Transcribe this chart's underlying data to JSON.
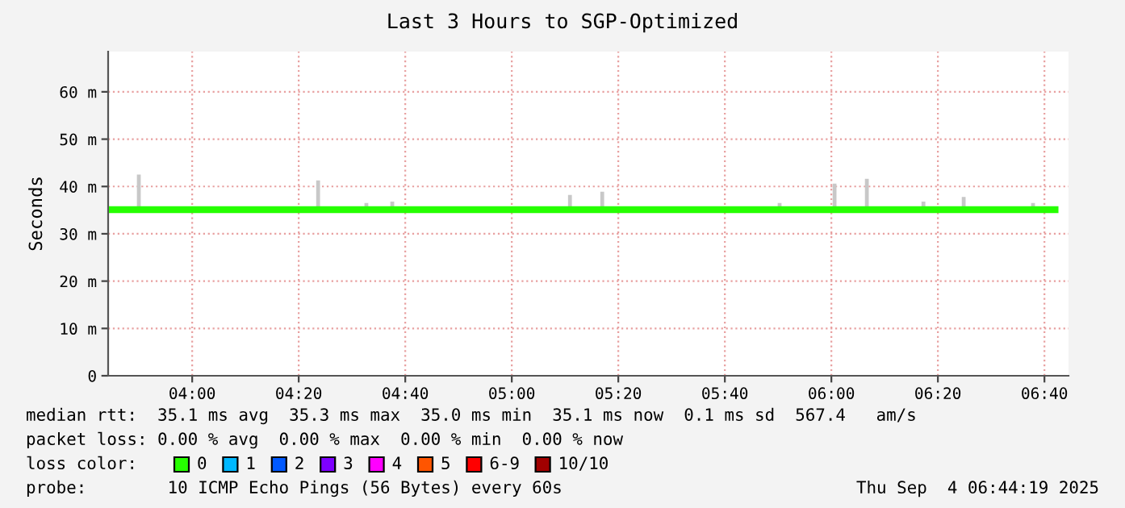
{
  "chart_data": {
    "type": "line",
    "title": "Last 3 Hours to SGP-Optimized",
    "ylabel": "Seconds",
    "x": [
      3.75,
      3.821,
      3.833,
      3.845,
      3.95,
      4.05,
      4.15,
      4.25,
      4.35,
      4.382,
      4.394,
      4.406,
      4.45,
      4.533,
      4.545,
      4.557,
      4.614,
      4.626,
      4.638,
      4.7,
      4.8,
      4.9,
      5.0,
      5.1,
      5.17,
      5.182,
      5.194,
      5.271,
      5.283,
      5.295,
      5.35,
      5.45,
      5.55,
      5.65,
      5.75,
      5.826,
      5.838,
      5.85,
      5.92,
      5.998,
      6.01,
      6.022,
      6.099,
      6.111,
      6.123,
      6.2,
      6.276,
      6.288,
      6.3,
      6.35,
      6.402,
      6.414,
      6.426,
      6.5,
      6.58,
      6.619,
      6.631,
      6.643,
      6.7
    ],
    "series": [
      {
        "name": "0",
        "color": "#26ff00",
        "values": [
          35.1,
          35.1,
          35.1,
          35.1,
          35.1,
          35.1,
          35.1,
          35.1,
          35.1,
          35.1,
          35.1,
          35.1,
          35.1,
          35.1,
          35.1,
          35.1,
          35.1,
          35.1,
          35.1,
          35.1,
          35.1,
          35.1,
          35.1,
          35.1,
          35.1,
          35.1,
          35.1,
          35.1,
          35.1,
          35.1,
          35.1,
          35.1,
          35.1,
          35.1,
          35.1,
          35.1,
          35.1,
          35.1,
          35.1,
          35.1,
          35.1,
          35.1,
          35.1,
          35.1,
          35.1,
          35.1,
          35.1,
          35.1,
          35.1,
          35.1,
          35.1,
          35.1,
          35.1,
          35.1,
          35.1,
          35.1,
          35.1,
          35.1,
          35.1
        ],
        "lower": [
          35.0,
          35.0,
          35.0,
          35.0,
          35.0,
          35.0,
          35.0,
          35.0,
          35.0,
          35.0,
          35.0,
          35.0,
          35.0,
          35.0,
          35.0,
          35.0,
          35.0,
          35.0,
          35.0,
          35.0,
          35.0,
          35.0,
          35.0,
          35.0,
          35.0,
          35.0,
          35.0,
          35.0,
          35.0,
          35.0,
          35.0,
          35.0,
          35.0,
          35.0,
          35.0,
          35.0,
          35.0,
          35.0,
          35.0,
          35.0,
          35.0,
          35.0,
          35.0,
          35.0,
          35.0,
          35.0,
          35.0,
          35.0,
          35.0,
          35.0,
          35.0,
          35.0,
          35.0,
          35.0,
          35.0,
          35.0,
          35.0,
          35.0,
          35.0
        ],
        "upper": [
          35.6,
          35.6,
          42.5,
          35.6,
          35.6,
          35.6,
          35.6,
          35.6,
          35.6,
          35.6,
          41.3,
          35.6,
          35.6,
          35.6,
          36.5,
          35.6,
          35.6,
          36.8,
          35.6,
          35.6,
          35.6,
          35.6,
          35.6,
          35.6,
          35.6,
          38.2,
          35.6,
          35.6,
          38.9,
          35.6,
          35.6,
          35.6,
          35.6,
          35.6,
          35.6,
          35.6,
          36.5,
          35.6,
          35.6,
          35.6,
          40.6,
          35.6,
          35.6,
          41.6,
          35.6,
          35.6,
          35.6,
          36.8,
          35.6,
          35.6,
          35.6,
          37.8,
          35.6,
          35.6,
          35.6,
          35.6,
          36.5,
          35.6,
          35.6
        ]
      },
      {
        "name": "1",
        "color": "#00b8ff",
        "values": [
          null,
          null,
          null,
          null,
          null,
          null,
          null,
          null,
          null,
          null,
          null,
          null,
          null,
          null,
          null,
          null,
          null,
          null,
          null,
          null,
          null,
          null,
          null,
          null,
          null,
          null,
          null,
          null,
          null,
          null,
          null,
          null,
          null,
          null,
          null,
          null,
          null,
          null,
          null,
          null,
          null,
          null,
          null,
          null,
          null,
          null,
          null,
          null,
          null,
          null,
          null,
          null,
          null,
          null,
          null,
          null,
          null,
          null,
          null
        ]
      },
      {
        "name": "2",
        "color": "#0059ff",
        "values": [
          null,
          null,
          null,
          null,
          null,
          null,
          null,
          null,
          null,
          null,
          null,
          null,
          null,
          null,
          null,
          null,
          null,
          null,
          null,
          null,
          null,
          null,
          null,
          null,
          null,
          null,
          null,
          null,
          null,
          null,
          null,
          null,
          null,
          null,
          null,
          null,
          null,
          null,
          null,
          null,
          null,
          null,
          null,
          null,
          null,
          null,
          null,
          null,
          null,
          null,
          null,
          null,
          null,
          null,
          null,
          null,
          null,
          null,
          null
        ]
      },
      {
        "name": "3",
        "color": "#7e00ff",
        "values": [
          null,
          null,
          null,
          null,
          null,
          null,
          null,
          null,
          null,
          null,
          null,
          null,
          null,
          null,
          null,
          null,
          null,
          null,
          null,
          null,
          null,
          null,
          null,
          null,
          null,
          null,
          null,
          null,
          null,
          null,
          null,
          null,
          null,
          null,
          null,
          null,
          null,
          null,
          null,
          null,
          null,
          null,
          null,
          null,
          null,
          null,
          null,
          null,
          null,
          null,
          null,
          null,
          null,
          null,
          null,
          null,
          null,
          null,
          null
        ]
      },
      {
        "name": "4",
        "color": "#ff00ff",
        "values": [
          null,
          null,
          null,
          null,
          null,
          null,
          null,
          null,
          null,
          null,
          null,
          null,
          null,
          null,
          null,
          null,
          null,
          null,
          null,
          null,
          null,
          null,
          null,
          null,
          null,
          null,
          null,
          null,
          null,
          null,
          null,
          null,
          null,
          null,
          null,
          null,
          null,
          null,
          null,
          null,
          null,
          null,
          null,
          null,
          null,
          null,
          null,
          null,
          null,
          null,
          null,
          null,
          null,
          null,
          null,
          null,
          null,
          null,
          null
        ]
      },
      {
        "name": "5",
        "color": "#ff5500",
        "values": [
          null,
          null,
          null,
          null,
          null,
          null,
          null,
          null,
          null,
          null,
          null,
          null,
          null,
          null,
          null,
          null,
          null,
          null,
          null,
          null,
          null,
          null,
          null,
          null,
          null,
          null,
          null,
          null,
          null,
          null,
          null,
          null,
          null,
          null,
          null,
          null,
          null,
          null,
          null,
          null,
          null,
          null,
          null,
          null,
          null,
          null,
          null,
          null,
          null,
          null,
          null,
          null,
          null,
          null,
          null,
          null,
          null,
          null,
          null
        ]
      },
      {
        "name": "6-9",
        "color": "#ff0000",
        "values": [
          null,
          null,
          null,
          null,
          null,
          null,
          null,
          null,
          null,
          null,
          null,
          null,
          null,
          null,
          null,
          null,
          null,
          null,
          null,
          null,
          null,
          null,
          null,
          null,
          null,
          null,
          null,
          null,
          null,
          null,
          null,
          null,
          null,
          null,
          null,
          null,
          null,
          null,
          null,
          null,
          null,
          null,
          null,
          null,
          null,
          null,
          null,
          null,
          null,
          null,
          null,
          null,
          null,
          null,
          null,
          null,
          null,
          null,
          null
        ]
      },
      {
        "name": "10/10",
        "color": "#a10000",
        "values": [
          null,
          null,
          null,
          null,
          null,
          null,
          null,
          null,
          null,
          null,
          null,
          null,
          null,
          null,
          null,
          null,
          null,
          null,
          null,
          null,
          null,
          null,
          null,
          null,
          null,
          null,
          null,
          null,
          null,
          null,
          null,
          null,
          null,
          null,
          null,
          null,
          null,
          null,
          null,
          null,
          null,
          null,
          null,
          null,
          null,
          null,
          null,
          null,
          null,
          null,
          null,
          null,
          null,
          null,
          null,
          null,
          null,
          null,
          null
        ]
      }
    ],
    "legend_title": "loss color:",
    "legend": "bottom",
    "grid": true,
    "line_style": "solid",
    "marker": "none",
    "xlim": [
      3.737,
      6.742
    ],
    "xticks": [
      {
        "value": 4,
        "label": "04:00"
      },
      {
        "value": 4.3333,
        "label": "04:20"
      },
      {
        "value": 4.6667,
        "label": "04:40"
      },
      {
        "value": 5,
        "label": "05:00"
      },
      {
        "value": 5.3333,
        "label": "05:20"
      },
      {
        "value": 5.6667,
        "label": "05:40"
      },
      {
        "value": 6,
        "label": "06:00"
      },
      {
        "value": 6.3333,
        "label": "06:20"
      },
      {
        "value": 6.6667,
        "label": "06:40"
      }
    ],
    "ylim": [
      0,
      68.5
    ],
    "yticks": [
      0,
      {
        "value": 10,
        "label": "10 m"
      },
      {
        "value": 20,
        "label": "20 m"
      },
      {
        "value": 30,
        "label": "30 m"
      },
      {
        "value": 40,
        "label": "40 m"
      },
      {
        "value": 50,
        "label": "50 m"
      },
      {
        "value": 60,
        "label": "60 m"
      }
    ],
    "annotations": [
      "median rtt:  35.1 ms avg  35.3 ms max  35.0 ms min  35.1 ms now  0.1 ms sd  567.4   am/s",
      "packet loss: 0.00 % avg  0.00 % max  0.00 % min  0.00 % now",
      "probe:        10 ICMP Echo Pings (56 Bytes) every 60s",
      "Thu Sep  4 06:44:19 2025"
    ]
  }
}
